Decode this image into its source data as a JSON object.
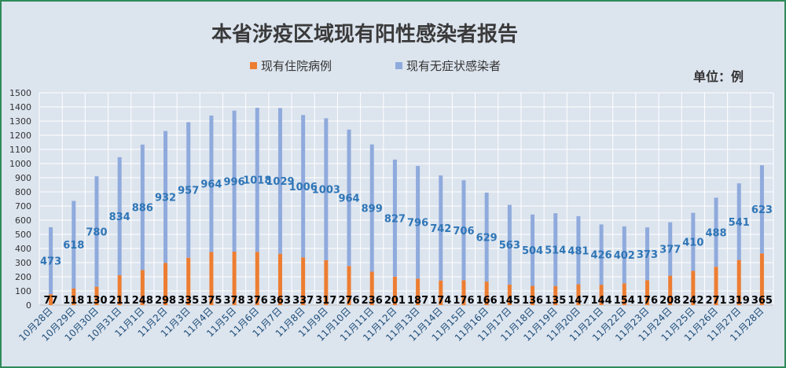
{
  "chart_data": {
    "type": "bar",
    "stacked": true,
    "title": "本省涉疫区域现有阳性感染者报告",
    "unit_label": "单位：例",
    "legend_position": "top",
    "ylim": [
      0,
      1500
    ],
    "ytick_step": 100,
    "grid": true,
    "categories": [
      "10月28日",
      "10月29日",
      "10月30日",
      "10月31日",
      "11月1日",
      "11月2日",
      "11月3日",
      "11月4日",
      "11月5日",
      "11月6日",
      "11月7日",
      "11月8日",
      "11月9日",
      "11月10日",
      "11月11日",
      "11月12日",
      "11月13日",
      "11月14日",
      "11月15日",
      "11月16日",
      "11月17日",
      "11月18日",
      "11月19日",
      "11月20日",
      "11月21日",
      "11月22日",
      "11月23日",
      "11月24日",
      "11月25日",
      "11月26日",
      "11月27日",
      "11月28日"
    ],
    "series": [
      {
        "name": "现有住院病例",
        "color": "#ed7d31",
        "label_color": "#000000",
        "values": [
          77,
          118,
          130,
          211,
          248,
          298,
          335,
          375,
          378,
          376,
          363,
          337,
          317,
          276,
          236,
          201,
          187,
          174,
          176,
          166,
          145,
          136,
          135,
          147,
          144,
          154,
          176,
          208,
          242,
          271,
          319,
          365
        ]
      },
      {
        "name": "现有无症状感染者",
        "color": "#8faadc",
        "label_color": "#2e75b6",
        "values": [
          473,
          618,
          780,
          834,
          886,
          932,
          957,
          964,
          996,
          1018,
          1029,
          1006,
          1003,
          964,
          899,
          827,
          796,
          742,
          706,
          629,
          563,
          504,
          514,
          481,
          426,
          402,
          373,
          377,
          410,
          488,
          541,
          623
        ]
      }
    ]
  }
}
